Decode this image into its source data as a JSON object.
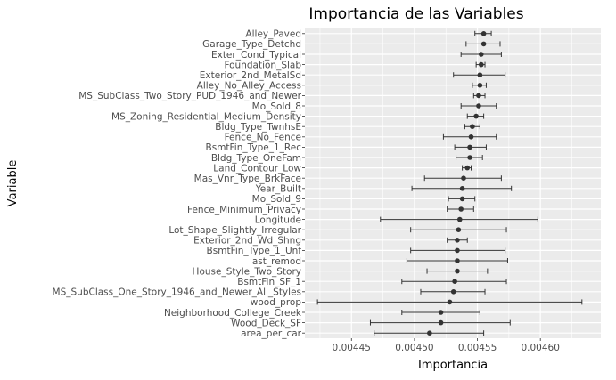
{
  "chart_data": {
    "type": "scatter",
    "title": "Importancia de las Variables",
    "xlabel": "Importancia",
    "ylabel": "Variable",
    "xlim": [
      0.004413,
      0.004648
    ],
    "xticks": [
      {
        "value": 0.00445,
        "label": "0.00445"
      },
      {
        "value": 0.0045,
        "label": "0.00450"
      },
      {
        "value": 0.00455,
        "label": "0.00455"
      },
      {
        "value": 0.0046,
        "label": "0.00460"
      }
    ],
    "grid": true,
    "legend": "none",
    "colors": {
      "panel": "#ebebeb",
      "grid": "#ffffff",
      "point": "#333333",
      "error_bar": "#333333"
    },
    "points": [
      {
        "label": "Alley_Paved",
        "value": 0.004555,
        "lo": 0.004548,
        "hi": 0.004561
      },
      {
        "label": "Garage_Type_Detchd",
        "value": 0.004555,
        "lo": 0.004541,
        "hi": 0.004568
      },
      {
        "label": "Exter_Cond_Typical",
        "value": 0.004553,
        "lo": 0.004537,
        "hi": 0.004569
      },
      {
        "label": "Foundation_Slab",
        "value": 0.004553,
        "lo": 0.004549,
        "hi": 0.004556
      },
      {
        "label": "Exterior_2nd_MetalSd",
        "value": 0.004552,
        "lo": 0.004531,
        "hi": 0.004572
      },
      {
        "label": "Alley_No_Alley_Access",
        "value": 0.004552,
        "lo": 0.004546,
        "hi": 0.004557
      },
      {
        "label": "MS_SubClass_Two_Story_PUD_1946_and_Newer",
        "value": 0.004551,
        "lo": 0.004547,
        "hi": 0.004556
      },
      {
        "label": "Mo_Sold_8",
        "value": 0.004551,
        "lo": 0.004537,
        "hi": 0.004565
      },
      {
        "label": "MS_Zoning_Residential_Medium_Density",
        "value": 0.004549,
        "lo": 0.004542,
        "hi": 0.004555
      },
      {
        "label": "Bldg_Type_TwnhsE",
        "value": 0.004546,
        "lo": 0.00454,
        "hi": 0.004552
      },
      {
        "label": "Fence_No_Fence",
        "value": 0.004545,
        "lo": 0.004523,
        "hi": 0.004565
      },
      {
        "label": "BsmtFin_Type_1_Rec",
        "value": 0.004544,
        "lo": 0.004532,
        "hi": 0.004557
      },
      {
        "label": "Bldg_Type_OneFam",
        "value": 0.004544,
        "lo": 0.004533,
        "hi": 0.004554
      },
      {
        "label": "Land_Contour_Low",
        "value": 0.004542,
        "lo": 0.004538,
        "hi": 0.004545
      },
      {
        "label": "Mas_Vnr_Type_BrkFace",
        "value": 0.004539,
        "lo": 0.004508,
        "hi": 0.004569
      },
      {
        "label": "Year_Built",
        "value": 0.004538,
        "lo": 0.004498,
        "hi": 0.004577
      },
      {
        "label": "Mo_Sold_9",
        "value": 0.004538,
        "lo": 0.004527,
        "hi": 0.004548
      },
      {
        "label": "Fence_Minimum_Privacy",
        "value": 0.004537,
        "lo": 0.004526,
        "hi": 0.004547
      },
      {
        "label": "Longitude",
        "value": 0.004536,
        "lo": 0.004473,
        "hi": 0.004598
      },
      {
        "label": "Lot_Shape_Slightly_Irregular",
        "value": 0.004535,
        "lo": 0.004497,
        "hi": 0.004573
      },
      {
        "label": "Exterior_2nd_Wd_Shng",
        "value": 0.004534,
        "lo": 0.004526,
        "hi": 0.004542
      },
      {
        "label": "BsmtFin_Type_1_Unf",
        "value": 0.004534,
        "lo": 0.004497,
        "hi": 0.004572
      },
      {
        "label": "last_remod",
        "value": 0.004534,
        "lo": 0.004494,
        "hi": 0.004574
      },
      {
        "label": "House_Style_Two_Story",
        "value": 0.004534,
        "lo": 0.00451,
        "hi": 0.004558
      },
      {
        "label": "BsmtFin_SF_1",
        "value": 0.004532,
        "lo": 0.00449,
        "hi": 0.004573
      },
      {
        "label": "MS_SubClass_One_Story_1946_and_Newer_All_Styles",
        "value": 0.004531,
        "lo": 0.004505,
        "hi": 0.004556
      },
      {
        "label": "wood_prop",
        "value": 0.004528,
        "lo": 0.004423,
        "hi": 0.004633
      },
      {
        "label": "Neighborhood_College_Creek",
        "value": 0.004521,
        "lo": 0.00449,
        "hi": 0.004552
      },
      {
        "label": "Wood_Deck_SF",
        "value": 0.004521,
        "lo": 0.004465,
        "hi": 0.004576
      },
      {
        "label": "area_per_car",
        "value": 0.004512,
        "lo": 0.004468,
        "hi": 0.004555
      }
    ]
  }
}
